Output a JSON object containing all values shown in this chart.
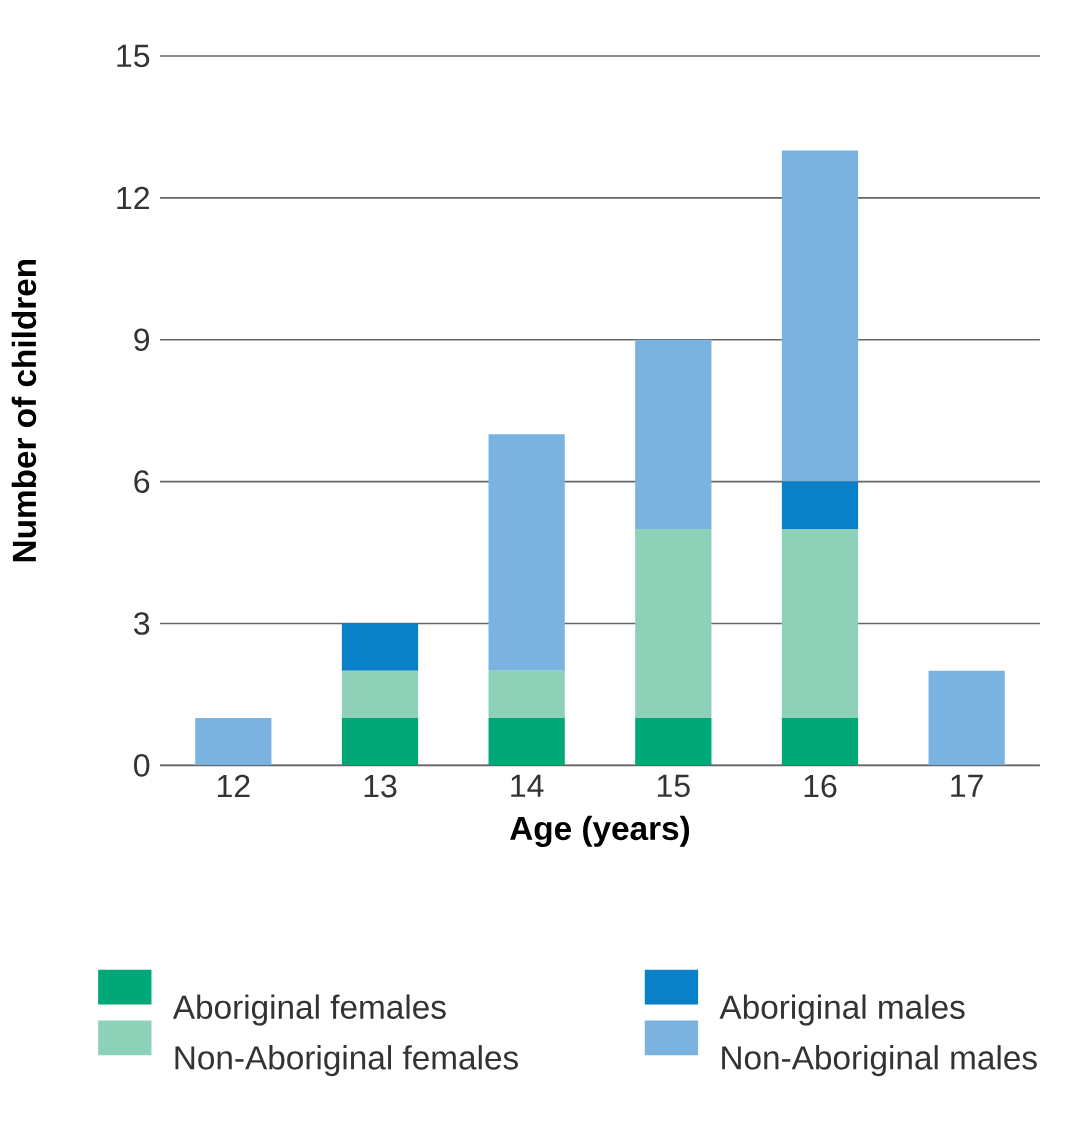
{
  "chart_data": {
    "type": "bar",
    "stacked": true,
    "xlabel": "Age (years)",
    "ylabel": "Number of children",
    "categories": [
      "12",
      "13",
      "14",
      "15",
      "16",
      "17"
    ],
    "series": [
      {
        "name": "Aboriginal females",
        "color": "#00a878",
        "values": [
          0,
          1,
          1,
          1,
          1,
          0
        ]
      },
      {
        "name": "Non-Aboriginal females",
        "color": "#8dd2b8",
        "values": [
          0,
          1,
          1,
          4,
          4,
          0
        ]
      },
      {
        "name": "Aboriginal males",
        "color": "#0a80c8",
        "values": [
          0,
          1,
          0,
          0,
          1,
          0
        ]
      },
      {
        "name": "Non-Aboriginal males",
        "color": "#7bb3e0",
        "values": [
          1,
          0,
          5,
          4,
          7,
          2
        ]
      }
    ],
    "ylim": [
      0,
      15
    ],
    "yticks": [
      0,
      3,
      6,
      9,
      12,
      15
    ],
    "grid": "y",
    "legend": "bottom"
  }
}
